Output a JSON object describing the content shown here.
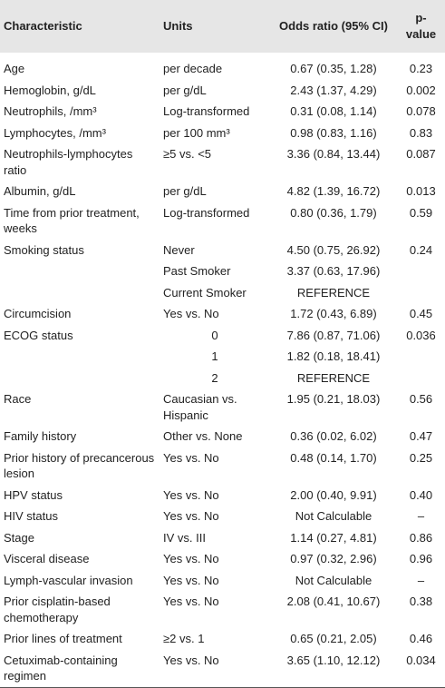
{
  "table": {
    "header": [
      "Characteristic",
      "Units",
      "Odds ratio (95% CI)",
      "p-value"
    ],
    "rows": [
      {
        "characteristic": "Age",
        "levels": [
          [
            "per decade",
            "0.67 (0.35, 1.28)",
            "0.23"
          ]
        ]
      },
      {
        "characteristic": "Hemoglobin, g/dL",
        "levels": [
          [
            "per g/dL",
            "2.43 (1.37, 4.29)",
            "0.002"
          ]
        ]
      },
      {
        "characteristic": "Neutrophils, /mm³",
        "levels": [
          [
            "Log-transformed",
            "0.31 (0.08, 1.14)",
            "0.078"
          ]
        ]
      },
      {
        "characteristic": "Lymphocytes, /mm³",
        "levels": [
          [
            "per 100 mm³",
            "0.98 (0.83, 1.16)",
            "0.83"
          ]
        ]
      },
      {
        "characteristic": "Neutrophils-lymphocytes ratio",
        "levels": [
          [
            "≥5 vs. <5",
            "3.36 (0.84, 13.44)",
            "0.087"
          ]
        ]
      },
      {
        "characteristic": "Albumin, g/dL",
        "levels": [
          [
            "per g/dL",
            "4.82 (1.39, 16.72)",
            "0.013"
          ]
        ]
      },
      {
        "characteristic": "Time from prior treatment, weeks",
        "levels": [
          [
            "Log-transformed",
            "0.80 (0.36, 1.79)",
            "0.59"
          ]
        ]
      },
      {
        "characteristic": "Smoking status",
        "levels": [
          [
            "Never",
            "4.50 (0.75, 26.92)",
            "0.24"
          ],
          [
            "Past Smoker",
            "3.37 (0.63, 17.96)"
          ],
          [
            "Current Smoker",
            "REFERENCE"
          ]
        ]
      },
      {
        "characteristic": "Circumcision",
        "levels": [
          [
            "Yes vs. No",
            "1.72 (0.43, 6.89)",
            "0.45"
          ]
        ]
      },
      {
        "characteristic": "ECOG status",
        "center_units": true,
        "levels": [
          [
            "0",
            "7.86 (0.87, 71.06)",
            "0.036"
          ],
          [
            "1",
            "1.82 (0.18, 18.41)"
          ],
          [
            "2",
            "REFERENCE"
          ]
        ]
      },
      {
        "characteristic": "Race",
        "levels": [
          [
            "Caucasian vs. Hispanic",
            "1.95 (0.21, 18.03)",
            "0.56"
          ]
        ]
      },
      {
        "characteristic": "Family history",
        "levels": [
          [
            "Other vs. None",
            "0.36 (0.02, 6.02)",
            "0.47"
          ]
        ]
      },
      {
        "characteristic": "Prior history of precancerous lesion",
        "levels": [
          [
            "Yes vs. No",
            "0.48 (0.14, 1.70)",
            "0.25"
          ]
        ]
      },
      {
        "characteristic": "HPV status",
        "levels": [
          [
            "Yes vs. No",
            "2.00 (0.40, 9.91)",
            "0.40"
          ]
        ]
      },
      {
        "characteristic": "HIV status",
        "levels": [
          [
            "Yes vs. No",
            "Not Calculable",
            "–"
          ]
        ]
      },
      {
        "characteristic": "Stage",
        "levels": [
          [
            "IV vs. III",
            "1.14 (0.27, 4.81)",
            "0.86"
          ]
        ]
      },
      {
        "characteristic": "Visceral disease",
        "levels": [
          [
            "Yes vs. No",
            "0.97 (0.32, 2.96)",
            "0.96"
          ]
        ]
      },
      {
        "characteristic": "Lymph-vascular invasion",
        "levels": [
          [
            "Yes vs. No",
            "Not Calculable",
            "–"
          ]
        ]
      },
      {
        "characteristic": "Prior cisplatin-based chemotherapy",
        "levels": [
          [
            "Yes vs. No",
            "2.08 (0.41, 10.67)",
            "0.38"
          ]
        ]
      },
      {
        "characteristic": "Prior lines of treatment",
        "levels": [
          [
            "≥2 vs. 1",
            "0.65 (0.21, 2.05)",
            "0.46"
          ]
        ]
      },
      {
        "characteristic": "Cetuximab-containing regimen",
        "levels": [
          [
            "Yes vs. No",
            "3.65 (1.10, 12.12)",
            "0.034"
          ]
        ]
      }
    ]
  }
}
